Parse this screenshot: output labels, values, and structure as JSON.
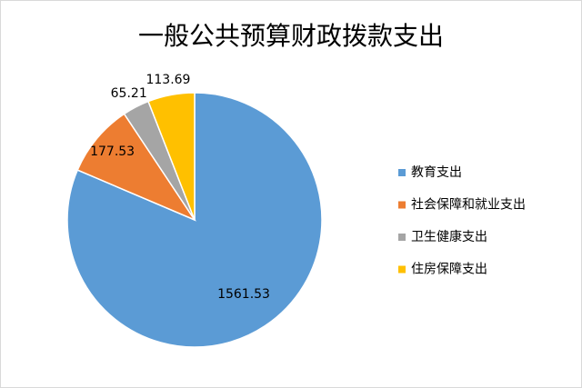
{
  "chart_data": {
    "type": "pie",
    "title": "一般公共预算财政拨款支出",
    "categories": [
      "教育支出",
      "社会保障和就业支出",
      "卫生健康支出",
      "住房保障支出"
    ],
    "values": [
      1561.53,
      177.53,
      65.21,
      113.69
    ],
    "colors": [
      "#5b9bd5",
      "#ed7d31",
      "#a5a5a5",
      "#ffc000"
    ],
    "legend": "right"
  }
}
